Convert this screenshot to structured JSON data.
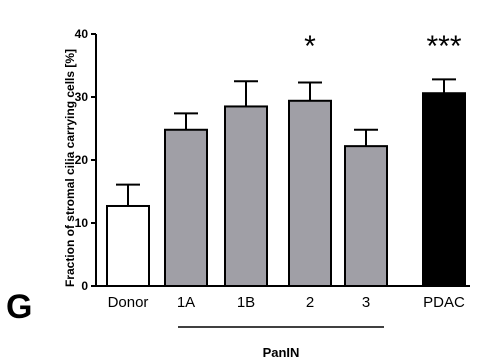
{
  "panel_letter": "G",
  "chart_data": {
    "type": "bar",
    "categories": [
      "Donor",
      "1A",
      "1B",
      "2",
      "3",
      "PDAC"
    ],
    "values": [
      12.7,
      24.8,
      28.5,
      29.4,
      22.2,
      30.6
    ],
    "errors": [
      3.4,
      2.6,
      4.0,
      2.9,
      2.6,
      2.2
    ],
    "bar_colors": [
      "#ffffff",
      "#a09fa6",
      "#a09fa6",
      "#a09fa6",
      "#a09fa6",
      "#000000"
    ],
    "significance": [
      "",
      "",
      "",
      "*",
      "",
      "***"
    ],
    "ylabel": "Fraction of stromal cilia carrying cells [%]",
    "ylim": [
      0,
      40
    ],
    "yticks": [
      "0",
      "10",
      "20",
      "30",
      "40"
    ],
    "group_label": "PanIN",
    "group_span": [
      "1A",
      "3"
    ],
    "grid": false
  }
}
